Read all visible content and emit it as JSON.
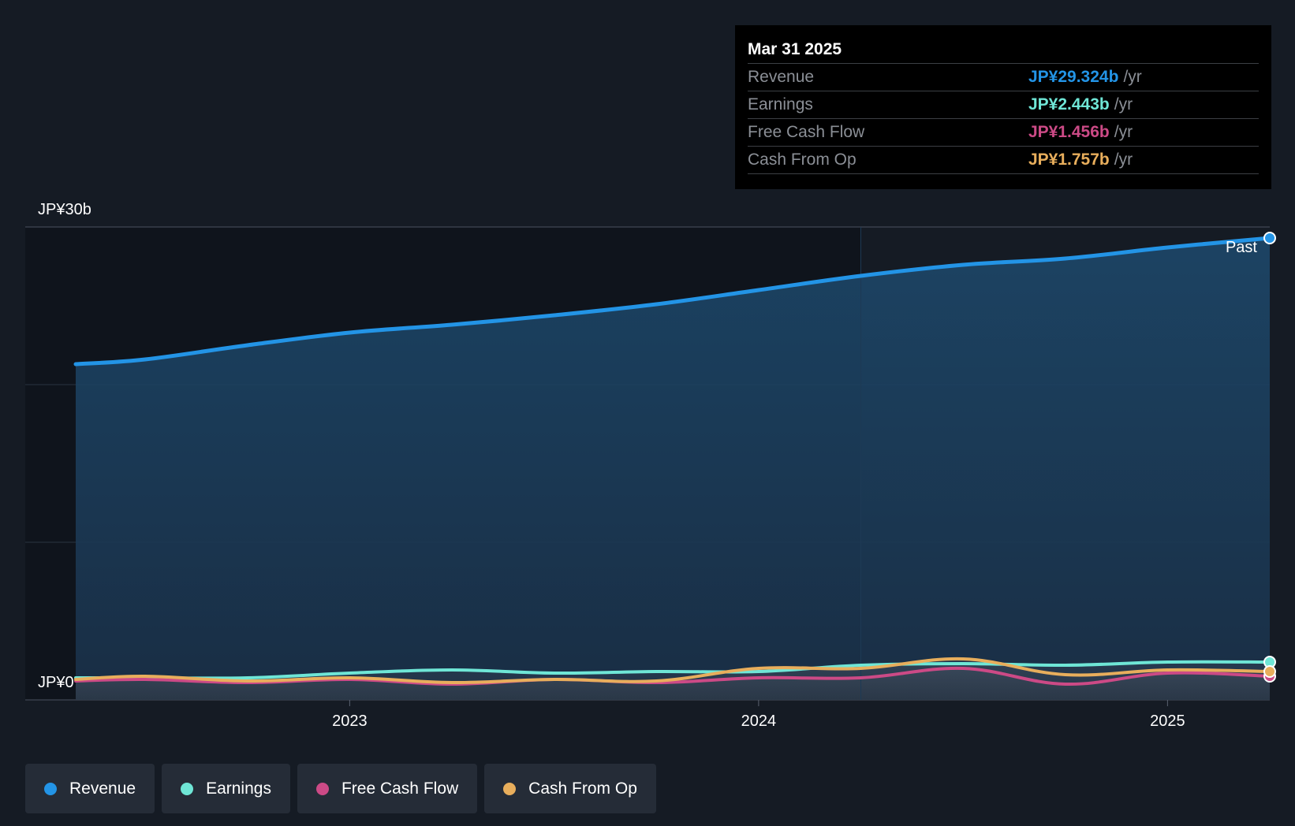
{
  "chart_data": {
    "type": "area",
    "currency": "JP¥",
    "y_axis": {
      "top_label": "JP¥30b",
      "bottom_label": "JP¥0",
      "ylim": [
        0,
        30
      ]
    },
    "x_axis": {
      "ticks": [
        "2023",
        "2024",
        "2025"
      ],
      "xlim": [
        2022.33,
        2025.25
      ]
    },
    "past_label": "Past",
    "x": [
      2022.33,
      2022.5,
      2022.75,
      2023.0,
      2023.25,
      2023.5,
      2023.75,
      2024.0,
      2024.25,
      2024.5,
      2024.75,
      2025.0,
      2025.25
    ],
    "series": [
      {
        "name": "Revenue",
        "color": "#2394e6",
        "values": [
          21.3,
          21.6,
          22.5,
          23.3,
          23.8,
          24.4,
          25.1,
          26.0,
          26.9,
          27.6,
          28.0,
          28.7,
          29.3
        ]
      },
      {
        "name": "Earnings",
        "color": "#6fe6d6",
        "values": [
          1.4,
          1.4,
          1.4,
          1.7,
          1.9,
          1.7,
          1.8,
          1.8,
          2.2,
          2.3,
          2.2,
          2.4,
          2.4
        ]
      },
      {
        "name": "Free Cash Flow",
        "color": "#cc4a86",
        "values": [
          1.2,
          1.3,
          1.1,
          1.3,
          1.0,
          1.3,
          1.1,
          1.4,
          1.4,
          2.0,
          1.0,
          1.7,
          1.5
        ]
      },
      {
        "name": "Cash From Op",
        "color": "#e8ae5c",
        "values": [
          1.3,
          1.5,
          1.2,
          1.4,
          1.1,
          1.3,
          1.2,
          2.0,
          2.0,
          2.6,
          1.6,
          1.9,
          1.8
        ]
      }
    ]
  },
  "tooltip": {
    "date": "Mar 31 2025",
    "unit": "/yr",
    "rows": [
      {
        "label": "Revenue",
        "value": "JP¥29.324b",
        "color": "#2394e6"
      },
      {
        "label": "Earnings",
        "value": "JP¥2.443b",
        "color": "#6fe6d6"
      },
      {
        "label": "Free Cash Flow",
        "value": "JP¥1.456b",
        "color": "#cc4a86"
      },
      {
        "label": "Cash From Op",
        "value": "JP¥1.757b",
        "color": "#e8ae5c"
      }
    ]
  },
  "legend": [
    {
      "label": "Revenue",
      "color": "#2394e6"
    },
    {
      "label": "Earnings",
      "color": "#6fe6d6"
    },
    {
      "label": "Free Cash Flow",
      "color": "#cc4a86"
    },
    {
      "label": "Cash From Op",
      "color": "#e8ae5c"
    }
  ]
}
